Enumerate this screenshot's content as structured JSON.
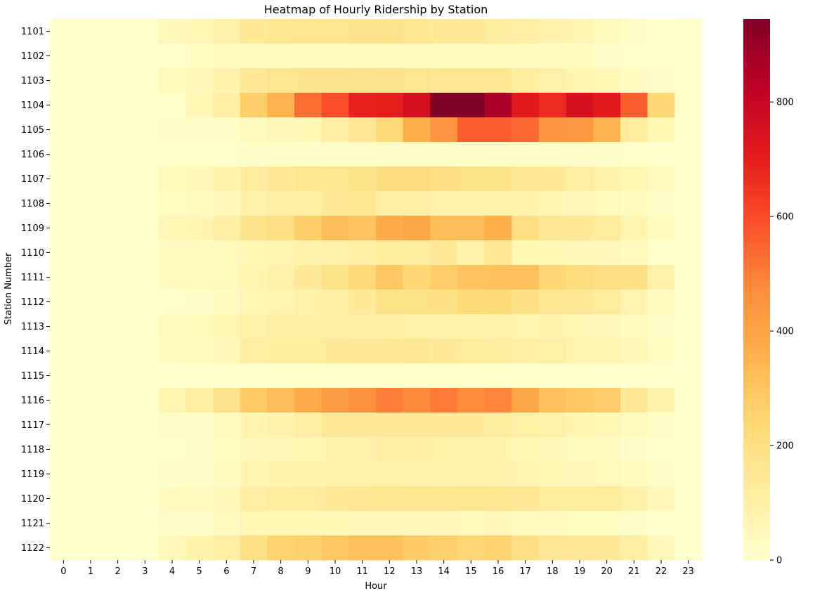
{
  "chart_data": {
    "type": "heatmap",
    "title": "Heatmap of Hourly Ridership by Station",
    "xlabel": "Hour",
    "ylabel": "Station Number",
    "x": [
      "0",
      "1",
      "2",
      "3",
      "4",
      "5",
      "6",
      "7",
      "8",
      "9",
      "10",
      "11",
      "12",
      "13",
      "14",
      "15",
      "16",
      "17",
      "18",
      "19",
      "20",
      "21",
      "22",
      "23"
    ],
    "y": [
      "1101",
      "1102",
      "1103",
      "1104",
      "1105",
      "1106",
      "1107",
      "1108",
      "1109",
      "1110",
      "1111",
      "1112",
      "1113",
      "1114",
      "1115",
      "1116",
      "1117",
      "1118",
      "1119",
      "1120",
      "1121",
      "1122"
    ],
    "colormap": "YlOrRd",
    "colorbar": {
      "min": 0,
      "max": 945,
      "ticks": [
        0,
        200,
        400,
        600,
        800
      ]
    },
    "values": [
      [
        0,
        0,
        0,
        0,
        50,
        65,
        90,
        145,
        160,
        165,
        165,
        170,
        175,
        160,
        145,
        140,
        125,
        105,
        80,
        70,
        45,
        20,
        10,
        0
      ],
      [
        0,
        0,
        0,
        0,
        10,
        25,
        30,
        35,
        35,
        35,
        35,
        35,
        40,
        40,
        30,
        30,
        35,
        35,
        35,
        30,
        20,
        10,
        5,
        0
      ],
      [
        0,
        0,
        0,
        0,
        45,
        55,
        85,
        140,
        165,
        170,
        170,
        175,
        175,
        165,
        155,
        155,
        155,
        120,
        95,
        75,
        60,
        30,
        15,
        0
      ],
      [
        0,
        0,
        0,
        0,
        10,
        60,
        110,
        270,
        350,
        530,
        590,
        690,
        700,
        760,
        945,
        945,
        860,
        710,
        670,
        750,
        710,
        560,
        240,
        0
      ],
      [
        0,
        0,
        0,
        0,
        20,
        20,
        20,
        40,
        50,
        65,
        110,
        155,
        230,
        360,
        450,
        560,
        560,
        540,
        450,
        440,
        350,
        130,
        60,
        0
      ],
      [
        0,
        0,
        0,
        0,
        10,
        10,
        10,
        15,
        20,
        20,
        20,
        20,
        20,
        20,
        20,
        20,
        20,
        20,
        20,
        20,
        20,
        10,
        5,
        0
      ],
      [
        0,
        0,
        0,
        0,
        45,
        55,
        80,
        125,
        145,
        160,
        165,
        180,
        205,
        210,
        195,
        185,
        180,
        145,
        135,
        115,
        95,
        60,
        35,
        0
      ],
      [
        0,
        0,
        0,
        0,
        25,
        35,
        50,
        90,
        105,
        115,
        135,
        160,
        110,
        110,
        95,
        95,
        95,
        80,
        70,
        50,
        45,
        35,
        15,
        0
      ],
      [
        0,
        0,
        0,
        0,
        60,
        70,
        105,
        175,
        200,
        270,
        320,
        300,
        370,
        390,
        320,
        320,
        360,
        200,
        155,
        140,
        130,
        75,
        35,
        0
      ],
      [
        0,
        0,
        0,
        0,
        30,
        35,
        45,
        65,
        70,
        80,
        90,
        110,
        130,
        120,
        135,
        95,
        155,
        65,
        60,
        50,
        50,
        40,
        10,
        0
      ],
      [
        0,
        0,
        0,
        0,
        35,
        40,
        45,
        75,
        90,
        135,
        180,
        230,
        290,
        240,
        270,
        300,
        310,
        310,
        240,
        215,
        200,
        190,
        95,
        0
      ],
      [
        0,
        0,
        0,
        0,
        10,
        15,
        35,
        60,
        70,
        90,
        110,
        135,
        180,
        185,
        195,
        230,
        220,
        195,
        160,
        150,
        130,
        70,
        30,
        0
      ],
      [
        0,
        0,
        0,
        0,
        40,
        45,
        60,
        95,
        110,
        105,
        110,
        105,
        105,
        95,
        90,
        85,
        90,
        75,
        80,
        60,
        50,
        40,
        15,
        0
      ],
      [
        0,
        0,
        0,
        0,
        35,
        40,
        55,
        115,
        125,
        120,
        135,
        140,
        145,
        155,
        135,
        130,
        120,
        110,
        100,
        75,
        70,
        55,
        25,
        0
      ],
      [
        0,
        0,
        0,
        0,
        5,
        5,
        5,
        10,
        10,
        10,
        10,
        10,
        10,
        10,
        10,
        10,
        10,
        10,
        10,
        10,
        5,
        5,
        5,
        0
      ],
      [
        0,
        0,
        0,
        0,
        75,
        110,
        170,
        280,
        320,
        370,
        420,
        460,
        500,
        480,
        510,
        470,
        490,
        390,
        310,
        290,
        270,
        150,
        80,
        0
      ],
      [
        0,
        0,
        0,
        0,
        15,
        20,
        35,
        70,
        85,
        110,
        150,
        150,
        140,
        140,
        135,
        135,
        120,
        100,
        95,
        75,
        60,
        40,
        15,
        0
      ],
      [
        0,
        0,
        0,
        0,
        10,
        15,
        25,
        50,
        55,
        65,
        80,
        85,
        110,
        110,
        100,
        95,
        80,
        65,
        50,
        40,
        30,
        20,
        10,
        0
      ],
      [
        0,
        0,
        0,
        0,
        15,
        20,
        30,
        70,
        80,
        80,
        85,
        85,
        90,
        85,
        80,
        80,
        80,
        70,
        65,
        55,
        45,
        35,
        15,
        0
      ],
      [
        0,
        0,
        0,
        0,
        30,
        40,
        55,
        110,
        120,
        125,
        135,
        155,
        160,
        160,
        160,
        165,
        160,
        140,
        130,
        125,
        120,
        90,
        50,
        0
      ],
      [
        0,
        0,
        0,
        0,
        20,
        20,
        30,
        60,
        65,
        60,
        60,
        55,
        55,
        55,
        50,
        45,
        55,
        40,
        35,
        25,
        25,
        15,
        5,
        0
      ],
      [
        0,
        0,
        0,
        0,
        50,
        80,
        110,
        190,
        250,
        260,
        290,
        310,
        310,
        280,
        260,
        240,
        250,
        190,
        150,
        140,
        140,
        110,
        50,
        0
      ]
    ]
  }
}
